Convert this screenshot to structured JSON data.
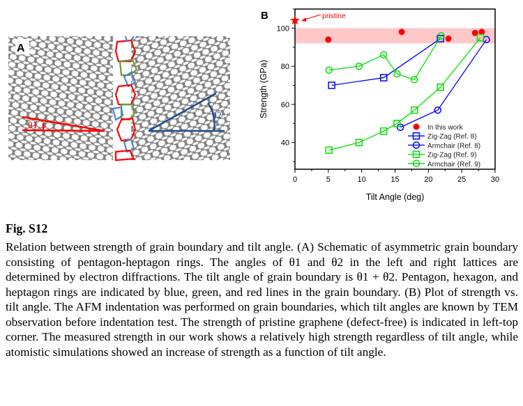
{
  "panel_a": {
    "label": "A",
    "theta1": "θ1",
    "theta2": "θ2",
    "colors": {
      "pentagon": "#4a86c8",
      "hexagon": "#6a9a30",
      "heptagon": "#ff0000",
      "lattice": "#808080"
    }
  },
  "chart_data": {
    "type": "scatter",
    "panel_label": "B",
    "xlabel": "Tilt Angle (deg)",
    "ylabel": "Strength (GPa)",
    "xlim": [
      0,
      30
    ],
    "ylim": [
      26,
      110
    ],
    "xticks": [
      0,
      5,
      10,
      15,
      20,
      25,
      30
    ],
    "yticks": [
      40,
      60,
      80,
      100
    ],
    "band": {
      "from": 92,
      "to": 100,
      "color": "#ffc8c8"
    },
    "annotation": {
      "text": "pristine",
      "x": 0,
      "y": 104,
      "color": "#ff0000"
    },
    "legend_position": "bottom-right",
    "series": [
      {
        "name": "In this work",
        "marker": "filled-circle",
        "line": false,
        "color": "#ff0000",
        "x": [
          5,
          16,
          23,
          27,
          28
        ],
        "y": [
          94,
          98,
          94.5,
          97.5,
          98
        ]
      },
      {
        "name": "Zig-Zag (Ref. 8)",
        "marker": "square",
        "line": true,
        "color": "#0000ff",
        "x": [
          5.5,
          13.3,
          21.8
        ],
        "y": [
          70,
          74,
          94.5
        ]
      },
      {
        "name": "Armchair (Ref. 8)",
        "marker": "circle",
        "line": true,
        "color": "#0000ff",
        "x": [
          15.8,
          21.4,
          28.7
        ],
        "y": [
          48,
          57,
          94
        ]
      },
      {
        "name": "Zig-Zag (Ref. 9)",
        "marker": "square",
        "line": true,
        "color": "#00e000",
        "x": [
          5.1,
          9.6,
          13.3,
          15.3,
          17.9,
          21.8,
          27.8
        ],
        "y": [
          36,
          40,
          46,
          50,
          57,
          69,
          95
        ]
      },
      {
        "name": "Armchair (Ref. 9)",
        "marker": "circle",
        "line": true,
        "color": "#00e000",
        "x": [
          5.1,
          9.6,
          13.3,
          15.3,
          17.9,
          21.9
        ],
        "y": [
          78,
          80,
          86,
          76,
          73,
          96
        ]
      }
    ]
  },
  "caption": {
    "fig_label": "Fig. S12",
    "text": "Relation between strength of grain boundary and tilt angle. (A) Schematic of asymmetric grain boundary consisting of pentagon-heptagon rings. The angles of θ1 and θ2 in the left and right lattices are determined by electron diffractions. The tilt angle of grain boundary is θ1 + θ2. Pentagon, hexagon, and heptagon rings are indicated by blue, green, and red lines in the grain boundary. (B) Plot of strength vs. tilt angle. The AFM indentation was performed on grain boundaries, which tilt angles are known by TEM observation before indentation test. The strength of pristine graphene (defect-free) is indicated in left-top corner. The measured strength in our work shows a relatively high strength regardless of tilt angle, while atomistic simulations showed an increase of strength as a function of tilt angle."
  }
}
